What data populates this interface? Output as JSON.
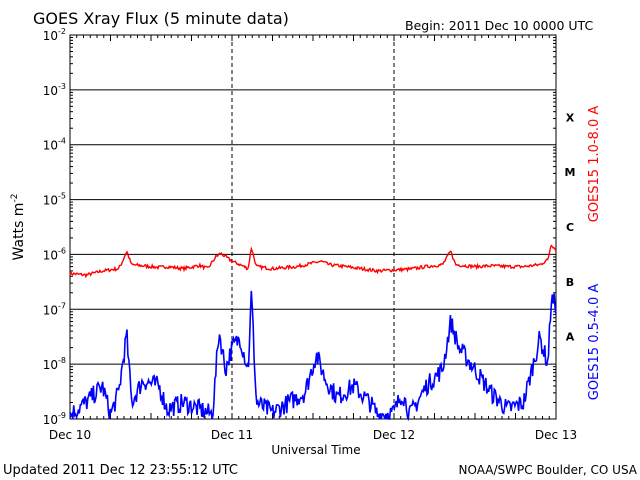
{
  "chart_data": {
    "type": "line",
    "title": "GOES Xray Flux (5 minute data)",
    "begin": "Begin:  2011 Dec 10 0000 UTC",
    "xlabel": "Universal Time",
    "ylabel_base": "Watts m",
    "ylabel_exp": "-2",
    "x_ticks": [
      "Dec 10",
      "Dec 11",
      "Dec 12",
      "Dec 13"
    ],
    "y_ticks": [
      {
        "base": "10",
        "exp": "-9"
      },
      {
        "base": "10",
        "exp": "-8"
      },
      {
        "base": "10",
        "exp": "-7"
      },
      {
        "base": "10",
        "exp": "-6"
      },
      {
        "base": "10",
        "exp": "-5"
      },
      {
        "base": "10",
        "exp": "-4"
      },
      {
        "base": "10",
        "exp": "-3"
      },
      {
        "base": "10",
        "exp": "-2"
      }
    ],
    "ylim": [
      1e-09,
      0.01
    ],
    "yscale": "log",
    "xlim_days": [
      0,
      3
    ],
    "flare_classes": [
      "A",
      "B",
      "C",
      "M",
      "X"
    ],
    "series": [
      {
        "name": "GOES15 1.0-8.0 A",
        "color": "#ff0000",
        "points": [
          [
            0,
            4.5e-07
          ],
          [
            0.1,
            4.2e-07
          ],
          [
            0.2,
            5e-07
          ],
          [
            0.3,
            5.5e-07
          ],
          [
            0.32,
            7e-07
          ],
          [
            0.35,
            1.15e-06
          ],
          [
            0.38,
            6.5e-07
          ],
          [
            0.45,
            6.2e-07
          ],
          [
            0.55,
            5.8e-07
          ],
          [
            0.6,
            6e-07
          ],
          [
            0.7,
            5.5e-07
          ],
          [
            0.8,
            6.3e-07
          ],
          [
            0.85,
            5.5e-07
          ],
          [
            0.9,
            9e-07
          ],
          [
            0.93,
            1.05e-06
          ],
          [
            1.0,
            7.5e-07
          ],
          [
            1.05,
            6.5e-07
          ],
          [
            1.1,
            5.5e-07
          ],
          [
            1.12,
            1.35e-06
          ],
          [
            1.15,
            6e-07
          ],
          [
            1.25,
            5.5e-07
          ],
          [
            1.4,
            6e-07
          ],
          [
            1.55,
            7.5e-07
          ],
          [
            1.6,
            6.5e-07
          ],
          [
            1.7,
            6e-07
          ],
          [
            1.8,
            5.5e-07
          ],
          [
            1.9,
            5e-07
          ],
          [
            2.0,
            5.2e-07
          ],
          [
            2.1,
            5.4e-07
          ],
          [
            2.2,
            6e-07
          ],
          [
            2.3,
            6.5e-07
          ],
          [
            2.35,
            1.15e-06
          ],
          [
            2.38,
            6.5e-07
          ],
          [
            2.5,
            6e-07
          ],
          [
            2.6,
            6.2e-07
          ],
          [
            2.7,
            6e-07
          ],
          [
            2.8,
            6e-07
          ],
          [
            2.9,
            6.5e-07
          ],
          [
            2.95,
            8e-07
          ],
          [
            2.97,
            1.55e-06
          ],
          [
            3.0,
            1.2e-06
          ]
        ]
      },
      {
        "name": "GOES15 0.5-4.0 A",
        "color": "#0000ff",
        "points": [
          [
            0,
            1.2e-09
          ],
          [
            0.1,
            2e-09
          ],
          [
            0.2,
            4e-09
          ],
          [
            0.25,
            1.2e-09
          ],
          [
            0.3,
            3e-09
          ],
          [
            0.35,
            3.5e-08
          ],
          [
            0.38,
            2e-09
          ],
          [
            0.45,
            5e-09
          ],
          [
            0.55,
            4e-09
          ],
          [
            0.6,
            1.5e-09
          ],
          [
            0.7,
            2e-09
          ],
          [
            0.8,
            1.5e-09
          ],
          [
            0.88,
            1.2e-09
          ],
          [
            0.92,
            4e-08
          ],
          [
            0.96,
            8e-09
          ],
          [
            1.0,
            2e-08
          ],
          [
            1.05,
            3e-08
          ],
          [
            1.1,
            8e-09
          ],
          [
            1.12,
            2e-07
          ],
          [
            1.15,
            2e-09
          ],
          [
            1.25,
            1.3e-09
          ],
          [
            1.35,
            2e-09
          ],
          [
            1.45,
            3e-09
          ],
          [
            1.52,
            1.5e-08
          ],
          [
            1.58,
            5e-09
          ],
          [
            1.65,
            2.5e-09
          ],
          [
            1.75,
            4e-09
          ],
          [
            1.85,
            2e-09
          ],
          [
            1.9,
            1.2e-09
          ],
          [
            2.0,
            1.3e-09
          ],
          [
            2.05,
            3e-09
          ],
          [
            2.1,
            1.2e-09
          ],
          [
            2.2,
            4e-09
          ],
          [
            2.3,
            8e-09
          ],
          [
            2.35,
            6e-08
          ],
          [
            2.4,
            2e-08
          ],
          [
            2.5,
            8e-09
          ],
          [
            2.6,
            3e-09
          ],
          [
            2.7,
            1.5e-09
          ],
          [
            2.8,
            2e-09
          ],
          [
            2.9,
            3e-08
          ],
          [
            2.95,
            1e-08
          ],
          [
            2.97,
            1.5e-07
          ],
          [
            3.0,
            1.2e-07
          ]
        ]
      }
    ]
  },
  "footer": {
    "updated": "Updated 2011 Dec 12 23:55:12 UTC",
    "credit": "NOAA/SWPC Boulder, CO USA"
  }
}
